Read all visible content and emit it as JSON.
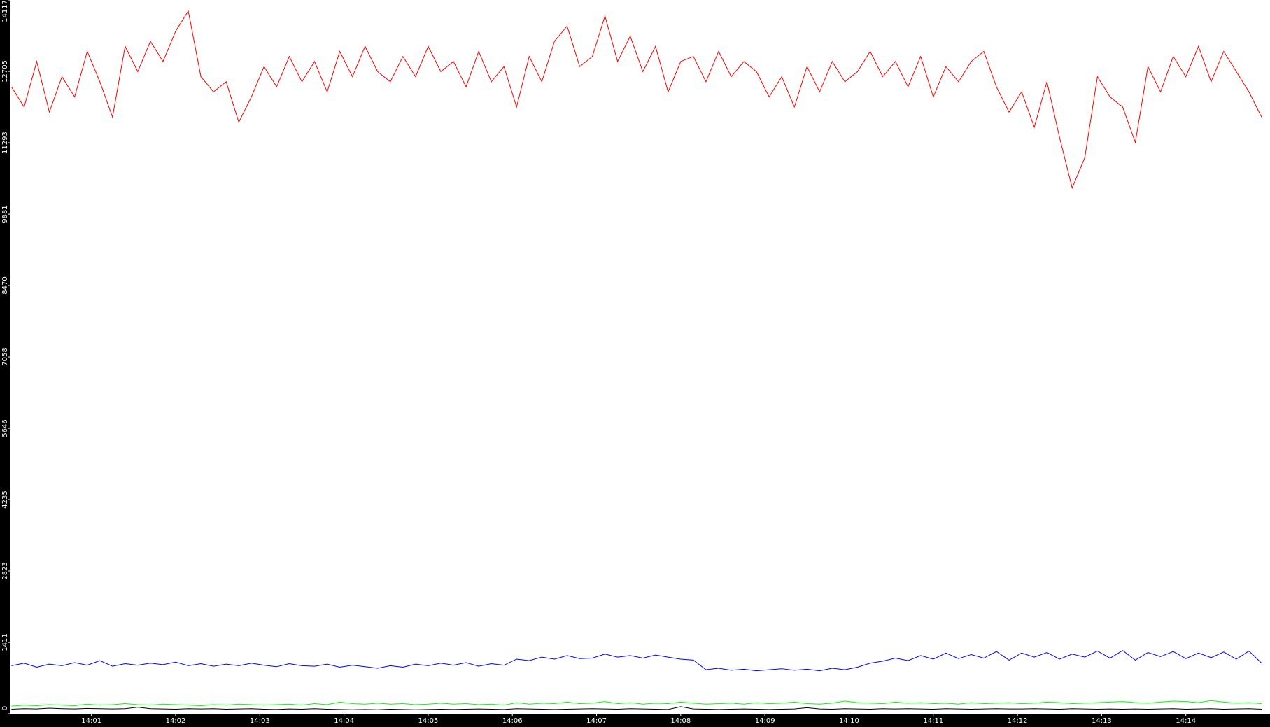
{
  "chart_data": {
    "type": "line",
    "x": [
      0.05,
      0.2,
      0.35,
      0.5,
      0.65,
      0.8,
      0.95,
      1.1,
      1.25,
      1.4,
      1.55,
      1.7,
      1.85,
      2,
      2.15,
      2.3,
      2.45,
      2.6,
      2.75,
      2.9,
      3.05,
      3.2,
      3.35,
      3.5,
      3.65,
      3.8,
      3.95,
      4.1,
      4.25,
      4.4,
      4.55,
      4.7,
      4.85,
      5,
      5.15,
      5.3,
      5.45,
      5.6,
      5.75,
      5.9,
      6.05,
      6.2,
      6.35,
      6.5,
      6.65,
      6.8,
      6.95,
      7.1,
      7.25,
      7.4,
      7.55,
      7.7,
      7.85,
      8,
      8.15,
      8.3,
      8.45,
      8.6,
      8.75,
      8.9,
      9.05,
      9.2,
      9.35,
      9.5,
      9.65,
      9.8,
      9.95,
      10.1,
      10.25,
      10.4,
      10.55,
      10.7,
      10.85,
      11,
      11.15,
      11.3,
      11.45,
      11.6,
      11.75,
      11.9,
      12.05,
      12.2,
      12.35,
      12.5,
      12.65,
      12.8,
      12.95,
      13.1,
      13.25,
      13.4,
      13.55,
      13.7,
      13.85,
      14,
      14.15,
      14.3,
      14.45,
      14.6,
      14.75,
      14.9
    ],
    "xlim": [
      0.03,
      15
    ],
    "xticks": [
      {
        "value": 1,
        "label": "14:01"
      },
      {
        "value": 2,
        "label": "14:02"
      },
      {
        "value": 3,
        "label": "14:03"
      },
      {
        "value": 4,
        "label": "14:04"
      },
      {
        "value": 5,
        "label": "14:05"
      },
      {
        "value": 6,
        "label": "14:06"
      },
      {
        "value": 7,
        "label": "14:07"
      },
      {
        "value": 8,
        "label": "14:08"
      },
      {
        "value": 9,
        "label": "14:09"
      },
      {
        "value": 10,
        "label": "14:10"
      },
      {
        "value": 11,
        "label": "14:11"
      },
      {
        "value": 12,
        "label": "14:12"
      },
      {
        "value": 13,
        "label": "14:13"
      },
      {
        "value": 14,
        "label": "14:14"
      }
    ],
    "ylim": [
      0,
      14117
    ],
    "yticks": [
      0,
      1411,
      2823,
      4235,
      5646,
      7058,
      8470,
      9881,
      11293,
      12705,
      14117
    ],
    "grid": false,
    "series": [
      {
        "color": "#ff0000",
        "values": [
          12400,
          12000,
          12900,
          11900,
          12600,
          12200,
          13100,
          12500,
          11800,
          13200,
          12700,
          13300,
          12900,
          13500,
          13900,
          12600,
          12300,
          12500,
          11700,
          12200,
          12800,
          12400,
          13000,
          12500,
          12900,
          12300,
          13100,
          12600,
          13200,
          12700,
          12500,
          13000,
          12600,
          13200,
          12700,
          12900,
          12400,
          13100,
          12500,
          12800,
          12000,
          13000,
          12500,
          13300,
          13600,
          12800,
          13000,
          13800,
          12900,
          13400,
          12700,
          13200,
          12300,
          12900,
          13000,
          12500,
          13100,
          12600,
          12900,
          12700,
          12200,
          12600,
          12000,
          12800,
          12300,
          12900,
          12500,
          12700,
          13100,
          12600,
          12900,
          12400,
          13000,
          12200,
          12800,
          12500,
          12900,
          13100,
          12400,
          11900,
          12300,
          11600,
          12500,
          11400,
          10400,
          11000,
          12600,
          12200,
          12000,
          11300,
          12800,
          12300,
          13000,
          12600,
          13200,
          12500,
          13100,
          12700,
          12300,
          11800
        ]
      },
      {
        "color": "#0000ff",
        "values": [
          950,
          1000,
          920,
          980,
          950,
          1010,
          960,
          1050,
          940,
          990,
          960,
          1000,
          970,
          1020,
          950,
          990,
          940,
          980,
          950,
          1000,
          960,
          930,
          990,
          950,
          940,
          980,
          920,
          960,
          930,
          900,
          950,
          920,
          980,
          950,
          1000,
          960,
          1010,
          940,
          990,
          960,
          1080,
          1050,
          1120,
          1080,
          1150,
          1090,
          1100,
          1180,
          1120,
          1150,
          1100,
          1160,
          1120,
          1080,
          1060,
          870,
          900,
          860,
          880,
          850,
          870,
          890,
          860,
          880,
          850,
          900,
          870,
          920,
          1000,
          1040,
          1100,
          1050,
          1150,
          1080,
          1200,
          1090,
          1170,
          1100,
          1230,
          1060,
          1200,
          1120,
          1210,
          1080,
          1180,
          1120,
          1240,
          1100,
          1250,
          1060,
          1210,
          1130,
          1230,
          1090,
          1200,
          1110,
          1220,
          1080,
          1240,
          1000
        ]
      },
      {
        "color": "#00ff00",
        "values": [
          150,
          170,
          160,
          180,
          170,
          160,
          190,
          170,
          180,
          200,
          180,
          170,
          190,
          180,
          170,
          160,
          180,
          170,
          190,
          180,
          170,
          180,
          190,
          170,
          200,
          180,
          230,
          200,
          190,
          210,
          190,
          200,
          180,
          190,
          210,
          190,
          200,
          180,
          190,
          170,
          220,
          190,
          210,
          200,
          230,
          200,
          210,
          240,
          200,
          220,
          190,
          210,
          200,
          230,
          210,
          190,
          200,
          210,
          190,
          220,
          200,
          210,
          230,
          200,
          190,
          210,
          250,
          220,
          210,
          200,
          230,
          210,
          220,
          200,
          210,
          190,
          220,
          200,
          210,
          220,
          200,
          210,
          230,
          220,
          200,
          210,
          220,
          230,
          240,
          220,
          210,
          230,
          250,
          240,
          220,
          260,
          230,
          210,
          220,
          200
        ]
      },
      {
        "color": "#000000",
        "values": [
          90,
          100,
          95,
          110,
          100,
          95,
          105,
          100,
          95,
          100,
          130,
          100,
          95,
          90,
          100,
          95,
          100,
          90,
          95,
          100,
          90,
          85,
          95,
          90,
          100,
          90,
          85,
          80,
          85,
          80,
          90,
          85,
          80,
          85,
          90,
          85,
          90,
          95,
          90,
          85,
          100,
          95,
          90,
          85,
          90,
          95,
          100,
          95,
          90,
          100,
          95,
          90,
          85,
          140,
          95,
          90,
          85,
          90,
          95,
          90,
          85,
          90,
          95,
          120,
          95,
          90,
          100,
          95,
          90,
          100,
          95,
          100,
          95,
          90,
          100,
          95,
          90,
          95,
          100,
          95,
          95,
          100,
          95,
          90,
          100,
          95,
          90,
          95,
          90,
          95,
          90,
          95,
          100,
          90,
          95,
          100,
          90,
          95,
          100,
          90
        ]
      }
    ]
  }
}
